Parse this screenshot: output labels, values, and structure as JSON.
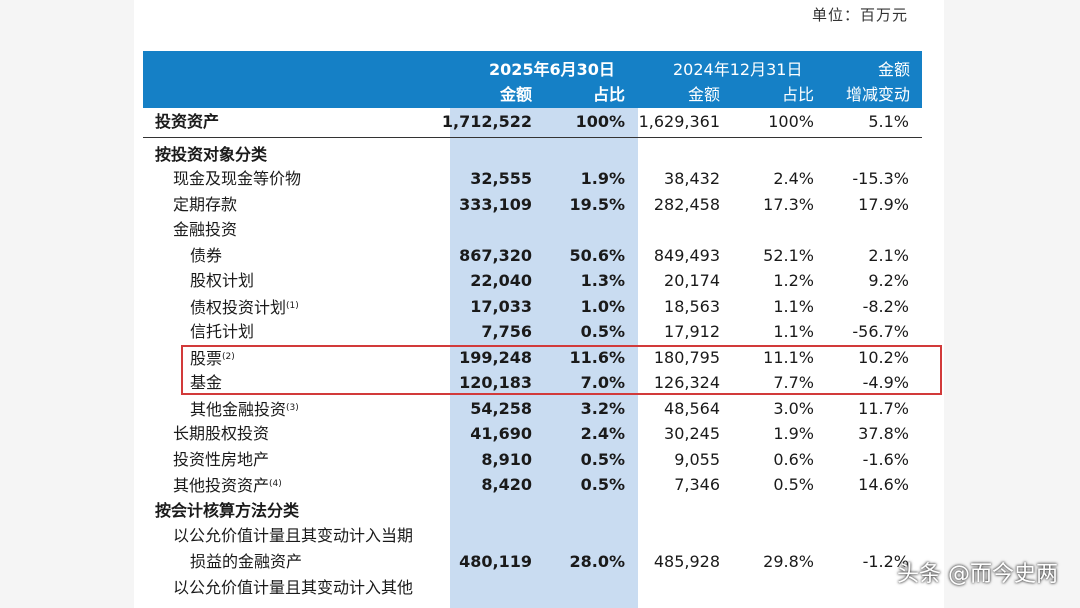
{
  "unit_label": "单位：百万元",
  "header": {
    "date_current": "2025年6月30日",
    "date_prior": "2024年12月31日",
    "amount_change_line1": "金额",
    "amount_change_line2": "增减变动",
    "amount": "金额",
    "ratio": "占比"
  },
  "rows": [
    {
      "label": "投资资产",
      "note": "",
      "cur_amount": "1,712,522",
      "cur_ratio": "100%",
      "prior_amount": "1,629,361",
      "prior_ratio": "100%",
      "change": "5.1%"
    },
    {
      "label": "按投资对象分类",
      "note": "",
      "cur_amount": "",
      "cur_ratio": "",
      "prior_amount": "",
      "prior_ratio": "",
      "change": ""
    },
    {
      "label": "现金及现金等价物",
      "note": "",
      "cur_amount": "32,555",
      "cur_ratio": "1.9%",
      "prior_amount": "38,432",
      "prior_ratio": "2.4%",
      "change": "-15.3%"
    },
    {
      "label": "定期存款",
      "note": "",
      "cur_amount": "333,109",
      "cur_ratio": "19.5%",
      "prior_amount": "282,458",
      "prior_ratio": "17.3%",
      "change": "17.9%"
    },
    {
      "label": "金融投资",
      "note": "",
      "cur_amount": "",
      "cur_ratio": "",
      "prior_amount": "",
      "prior_ratio": "",
      "change": ""
    },
    {
      "label": "债券",
      "note": "",
      "cur_amount": "867,320",
      "cur_ratio": "50.6%",
      "prior_amount": "849,493",
      "prior_ratio": "52.1%",
      "change": "2.1%"
    },
    {
      "label": "股权计划",
      "note": "",
      "cur_amount": "22,040",
      "cur_ratio": "1.3%",
      "prior_amount": "20,174",
      "prior_ratio": "1.2%",
      "change": "9.2%"
    },
    {
      "label": "债权投资计划",
      "note": "(1)",
      "cur_amount": "17,033",
      "cur_ratio": "1.0%",
      "prior_amount": "18,563",
      "prior_ratio": "1.1%",
      "change": "-8.2%"
    },
    {
      "label": "信托计划",
      "note": "",
      "cur_amount": "7,756",
      "cur_ratio": "0.5%",
      "prior_amount": "17,912",
      "prior_ratio": "1.1%",
      "change": "-56.7%"
    },
    {
      "label": "股票",
      "note": "(2)",
      "cur_amount": "199,248",
      "cur_ratio": "11.6%",
      "prior_amount": "180,795",
      "prior_ratio": "11.1%",
      "change": "10.2%"
    },
    {
      "label": "基金",
      "note": "",
      "cur_amount": "120,183",
      "cur_ratio": "7.0%",
      "prior_amount": "126,324",
      "prior_ratio": "7.7%",
      "change": "-4.9%"
    },
    {
      "label": "其他金融投资",
      "note": "(3)",
      "cur_amount": "54,258",
      "cur_ratio": "3.2%",
      "prior_amount": "48,564",
      "prior_ratio": "3.0%",
      "change": "11.7%"
    },
    {
      "label": "长期股权投资",
      "note": "",
      "cur_amount": "41,690",
      "cur_ratio": "2.4%",
      "prior_amount": "30,245",
      "prior_ratio": "1.9%",
      "change": "37.8%"
    },
    {
      "label": "投资性房地产",
      "note": "",
      "cur_amount": "8,910",
      "cur_ratio": "0.5%",
      "prior_amount": "9,055",
      "prior_ratio": "0.6%",
      "change": "-1.6%"
    },
    {
      "label": "其他投资资产",
      "note": "(4)",
      "cur_amount": "8,420",
      "cur_ratio": "0.5%",
      "prior_amount": "7,346",
      "prior_ratio": "0.5%",
      "change": "14.6%"
    },
    {
      "label": "按会计核算方法分类",
      "note": "",
      "cur_amount": "",
      "cur_ratio": "",
      "prior_amount": "",
      "prior_ratio": "",
      "change": ""
    },
    {
      "label": "以公允价值计量且其变动计入当期",
      "note": "",
      "cur_amount": "",
      "cur_ratio": "",
      "prior_amount": "",
      "prior_ratio": "",
      "change": ""
    },
    {
      "label": "损益的金融资产",
      "note": "",
      "cur_amount": "480,119",
      "cur_ratio": "28.0%",
      "prior_amount": "485,928",
      "prior_ratio": "29.8%",
      "change": "-1.2%"
    },
    {
      "label": "以公允价值计量且其变动计入其他",
      "note": "",
      "cur_amount": "",
      "cur_ratio": "",
      "prior_amount": "",
      "prior_ratio": "",
      "change": ""
    }
  ],
  "watermark": "头条 @而今史两"
}
